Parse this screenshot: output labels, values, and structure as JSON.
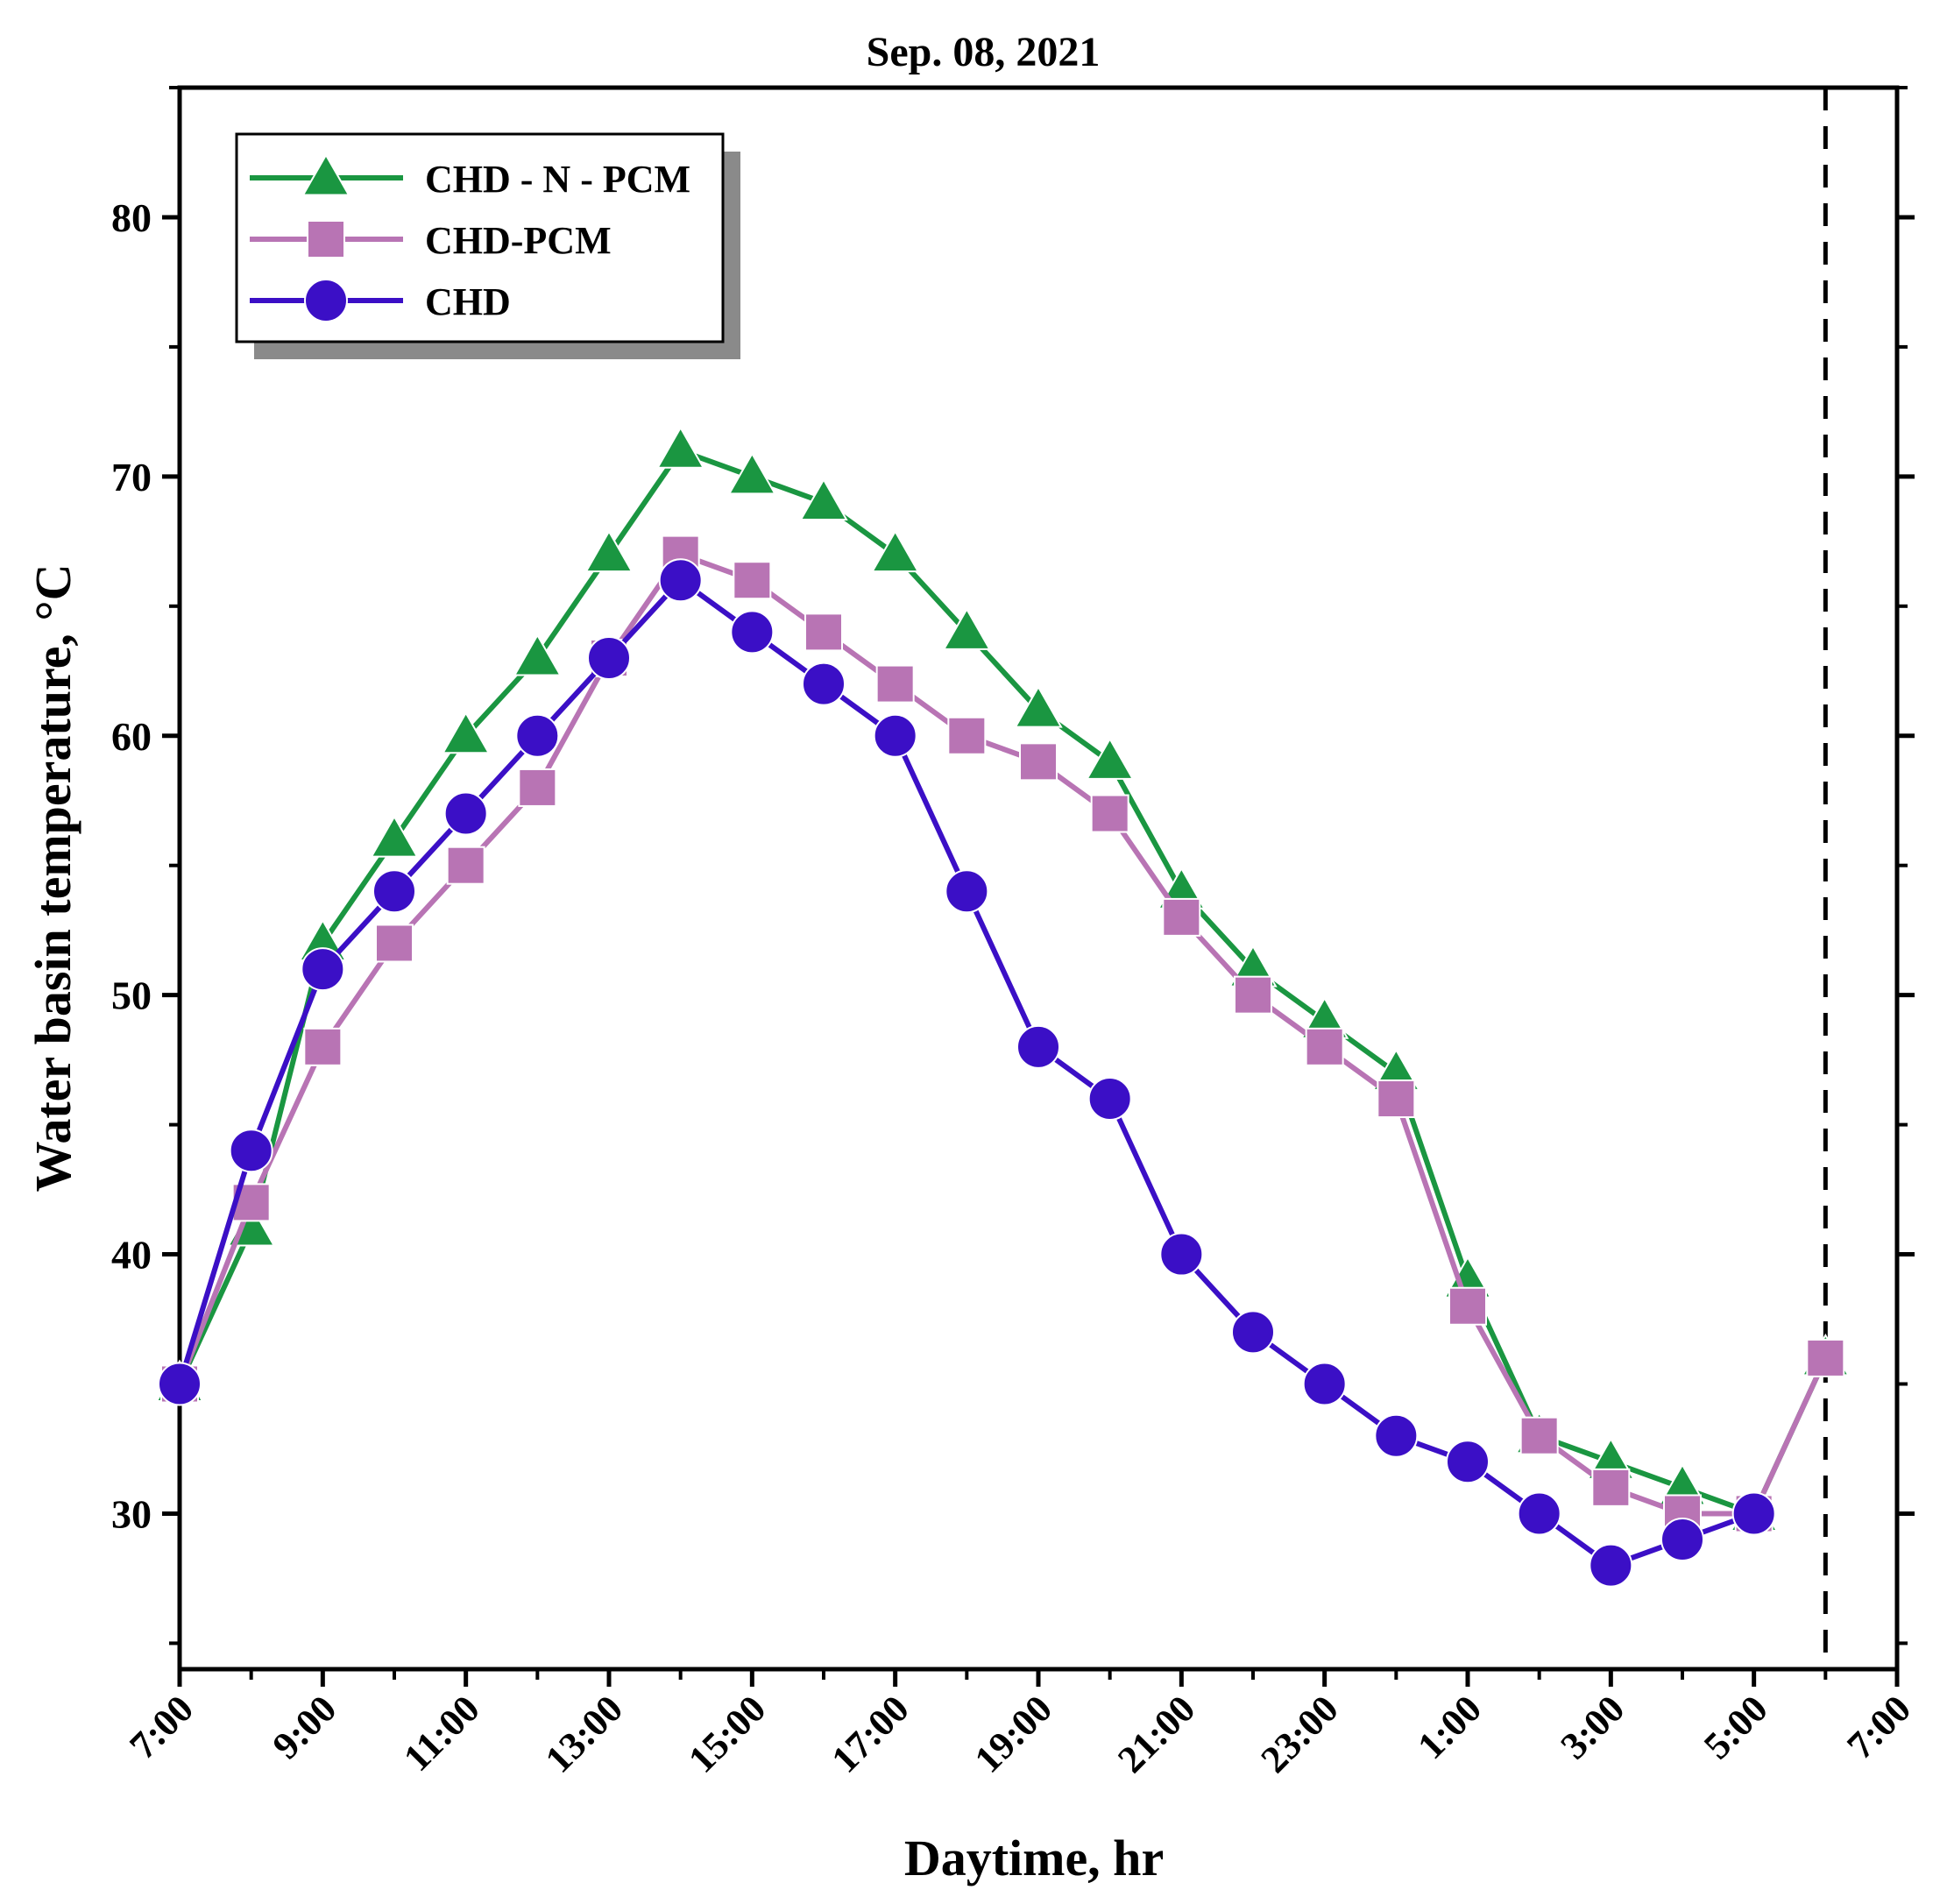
{
  "chart_data": {
    "type": "line",
    "title": "Sep. 08, 2021",
    "xlabel": "Daytime, hr",
    "ylabel": "Water basin temperature, °C",
    "ylim": [
      24,
      85
    ],
    "y_ticks": [
      30,
      40,
      50,
      60,
      70,
      80
    ],
    "x_range": [
      0,
      24
    ],
    "x_ticks": [
      {
        "x": 0,
        "label": "7:00"
      },
      {
        "x": 2,
        "label": "9:00"
      },
      {
        "x": 4,
        "label": "11:00"
      },
      {
        "x": 6,
        "label": "13:00"
      },
      {
        "x": 8,
        "label": "15:00"
      },
      {
        "x": 10,
        "label": "17:00"
      },
      {
        "x": 12,
        "label": "19:00"
      },
      {
        "x": 14,
        "label": "21:00"
      },
      {
        "x": 16,
        "label": "23:00"
      },
      {
        "x": 18,
        "label": "1:00"
      },
      {
        "x": 20,
        "label": "3:00"
      },
      {
        "x": 22,
        "label": "5:00"
      },
      {
        "x": 24,
        "label": "7:00"
      }
    ],
    "x": [
      0,
      1,
      2,
      3,
      4,
      5,
      6,
      7,
      8,
      9,
      10,
      11,
      12,
      13,
      14,
      15,
      16,
      17,
      18,
      19,
      20,
      21,
      22,
      23
    ],
    "reference_line_x": 23,
    "legend_position": "top-left",
    "series": [
      {
        "name": "CHD - N - PCM",
        "color": "#1a9641",
        "marker": "triangle",
        "values": [
          35,
          41,
          52,
          56,
          60,
          63,
          67,
          71,
          70,
          69,
          67,
          64,
          61,
          59,
          54,
          51,
          49,
          47,
          39,
          33,
          32,
          31,
          30,
          36
        ]
      },
      {
        "name": "CHD-PCM",
        "color": "#b874b4",
        "marker": "square",
        "values": [
          35,
          42,
          48,
          52,
          55,
          58,
          63,
          67,
          66,
          64,
          62,
          60,
          59,
          57,
          53,
          50,
          48,
          46,
          38,
          33,
          31,
          30,
          30,
          36
        ]
      },
      {
        "name": "CHD",
        "color": "#3b0fc6",
        "marker": "circle",
        "values": [
          35,
          44,
          51,
          54,
          57,
          60,
          63,
          66,
          64,
          62,
          60,
          54,
          48,
          46,
          40,
          37,
          35,
          33,
          32,
          30,
          28,
          29,
          30,
          null
        ]
      }
    ]
  }
}
